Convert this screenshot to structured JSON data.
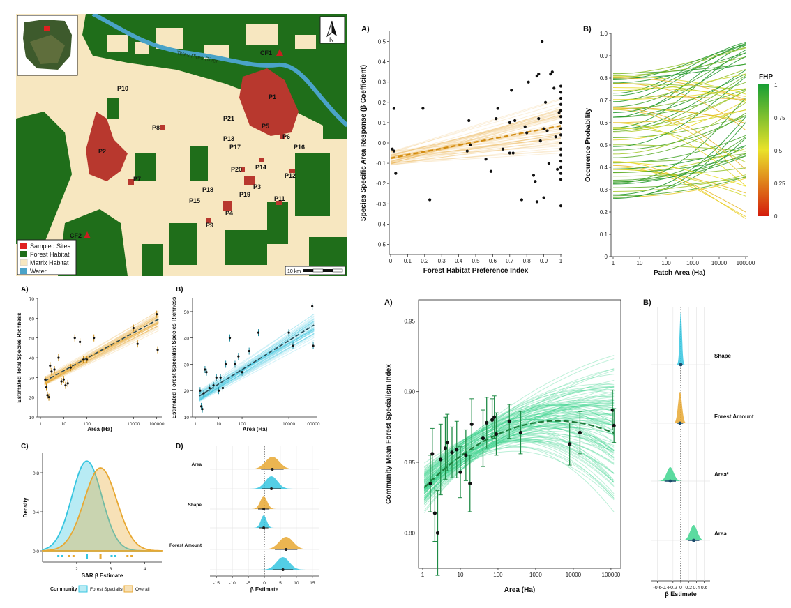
{
  "colors": {
    "orange": "#e8a832",
    "cyan": "#35c5e0",
    "green": "#3fd58f",
    "forest": "#1f6e1a",
    "matrix": "#f7e7c0",
    "site": "#b8382e",
    "water": "#4aa3c8",
    "darkgreen": "#1e7a3a"
  },
  "map": {
    "legend": [
      "Sampled Sites",
      "Forest Habitat",
      "Matrix Habitat",
      "Water"
    ],
    "scale_label": "10 km",
    "north": "N",
    "river_label": "Teles Pires River",
    "site_labels": [
      "P1",
      "P2",
      "P3",
      "P4",
      "P5",
      "P6",
      "P7",
      "P8",
      "P9",
      "P10",
      "P11",
      "P12",
      "P13",
      "P14",
      "P15",
      "P16",
      "P17",
      "P18",
      "P19",
      "P20",
      "P21",
      "CF1",
      "CF2"
    ]
  },
  "chart_data": [
    {
      "id": "top-A",
      "type": "scatter",
      "label": "A)",
      "xlabel": "Forest Habitat Preference Index",
      "ylabel": "Species Specific Area Response (β Coefficient)",
      "xlim": [
        0,
        1
      ],
      "ylim": [
        -0.55,
        0.55
      ],
      "xticks": [
        "0",
        "0.1",
        "0.2",
        "0.3",
        "0.4",
        "0.5",
        "0.6",
        "0.7",
        "0.8",
        "0.9",
        "1"
      ],
      "yticks": [
        "-0.5",
        "-0.4",
        "-0.3",
        "-0.2",
        "-0.1",
        "0.0",
        "0.1",
        "0.2",
        "0.3",
        "0.4",
        "0.5"
      ],
      "fit": {
        "intercept": -0.075,
        "slope": 0.16
      },
      "points": [
        [
          0.01,
          -0.03
        ],
        [
          0.02,
          0.17
        ],
        [
          0.02,
          -0.04
        ],
        [
          0.03,
          -0.15
        ],
        [
          0.19,
          0.17
        ],
        [
          0.23,
          -0.28
        ],
        [
          0.45,
          -0.04
        ],
        [
          0.46,
          0.11
        ],
        [
          0.47,
          -0.01
        ],
        [
          0.56,
          -0.08
        ],
        [
          0.59,
          -0.14
        ],
        [
          0.62,
          0.12
        ],
        [
          0.63,
          0.17
        ],
        [
          0.66,
          -0.03
        ],
        [
          0.7,
          0.1
        ],
        [
          0.7,
          -0.05
        ],
        [
          0.71,
          0.26
        ],
        [
          0.72,
          -0.05
        ],
        [
          0.73,
          0.11
        ],
        [
          0.77,
          -0.28
        ],
        [
          0.79,
          0.08
        ],
        [
          0.8,
          0.05
        ],
        [
          0.81,
          0.3
        ],
        [
          0.84,
          -0.16
        ],
        [
          0.85,
          -0.19
        ],
        [
          0.86,
          0.33
        ],
        [
          0.86,
          -0.29
        ],
        [
          0.87,
          0.34
        ],
        [
          0.87,
          0.12
        ],
        [
          0.88,
          0.01
        ],
        [
          0.89,
          0.5
        ],
        [
          0.9,
          0.07
        ],
        [
          0.9,
          -0.27
        ],
        [
          0.91,
          0.2
        ],
        [
          0.92,
          0.06
        ],
        [
          0.93,
          -0.1
        ],
        [
          0.94,
          0.34
        ],
        [
          0.95,
          0.35
        ],
        [
          0.96,
          0.27
        ],
        [
          0.97,
          0.03
        ],
        [
          0.98,
          -0.13
        ],
        [
          0.99,
          0.15
        ],
        [
          1.0,
          0.28
        ],
        [
          1.0,
          0.25
        ],
        [
          1.0,
          0.22
        ],
        [
          1.0,
          0.19
        ],
        [
          1.0,
          0.16
        ],
        [
          1.0,
          0.13
        ],
        [
          1.0,
          0.1
        ],
        [
          1.0,
          0.07
        ],
        [
          1.0,
          0.04
        ],
        [
          1.0,
          0.0
        ],
        [
          1.0,
          -0.03
        ],
        [
          1.0,
          -0.06
        ],
        [
          1.0,
          -0.09
        ],
        [
          1.0,
          -0.12
        ],
        [
          1.0,
          -0.15
        ],
        [
          1.0,
          -0.18
        ],
        [
          1.0,
          -0.31
        ]
      ]
    },
    {
      "id": "top-B",
      "type": "line",
      "label": "B)",
      "xlabel": "Patch Area (Ha)",
      "ylabel": "Occurence Probability",
      "ylim": [
        0,
        1
      ],
      "xticks": [
        "1",
        "10",
        "100",
        "1000",
        "10000",
        "100000"
      ],
      "yticks": [
        "0",
        "0.1",
        "0.2",
        "0.3",
        "0.4",
        "0.5",
        "0.6",
        "0.7",
        "0.8",
        "0.9",
        "1.0"
      ],
      "colorbar": {
        "title": "FHP",
        "ticks": [
          "1",
          "0.75",
          "0.5",
          "0.25",
          "0"
        ]
      },
      "n_series": 70
    },
    {
      "id": "mid-A",
      "type": "scatter",
      "label": "A)",
      "xlabel": "Area (Ha)",
      "ylabel": "Estimated Total Species Richness",
      "ylim": [
        10,
        70
      ],
      "xticks": [
        "1",
        "10",
        "100",
        "10000",
        "100000"
      ],
      "yticks": [
        "10",
        "20",
        "30",
        "40",
        "50",
        "60",
        "70"
      ],
      "fit": {
        "intercept": 27,
        "slope": 6.4
      },
      "points": [
        [
          1.6,
          29
        ],
        [
          1.8,
          25
        ],
        [
          2.0,
          21
        ],
        [
          2.3,
          20
        ],
        [
          2.6,
          36
        ],
        [
          3,
          33
        ],
        [
          4,
          34
        ],
        [
          6,
          40
        ],
        [
          8,
          28
        ],
        [
          10,
          29
        ],
        [
          12,
          26
        ],
        [
          15,
          27
        ],
        [
          20,
          35
        ],
        [
          30,
          50
        ],
        [
          50,
          48
        ],
        [
          70,
          39
        ],
        [
          100,
          39
        ],
        [
          200,
          50
        ],
        [
          10000,
          55
        ],
        [
          15000,
          47
        ],
        [
          100000,
          62
        ],
        [
          110000,
          44
        ]
      ]
    },
    {
      "id": "mid-B",
      "type": "scatter",
      "label": "B)",
      "xlabel": "Area (Ha)",
      "ylabel": "Estimated Forest Specialist Species Richness",
      "ylim": [
        10,
        55
      ],
      "xticks": [
        "1",
        "10",
        "100",
        "10000",
        "100000"
      ],
      "yticks": [
        "10",
        "20",
        "30",
        "40",
        "50"
      ],
      "fit": {
        "intercept": 17,
        "slope": 5.5
      },
      "points": [
        [
          1.6,
          20
        ],
        [
          1.8,
          14
        ],
        [
          2.0,
          13
        ],
        [
          2.3,
          19
        ],
        [
          2.6,
          28
        ],
        [
          3,
          27
        ],
        [
          4,
          21
        ],
        [
          6,
          22
        ],
        [
          8,
          25
        ],
        [
          10,
          20
        ],
        [
          12,
          25
        ],
        [
          15,
          21
        ],
        [
          20,
          30
        ],
        [
          30,
          40
        ],
        [
          50,
          30
        ],
        [
          70,
          33
        ],
        [
          100,
          27
        ],
        [
          200,
          35
        ],
        [
          500,
          42
        ],
        [
          10000,
          42
        ],
        [
          15000,
          37
        ],
        [
          100000,
          52
        ],
        [
          110000,
          37
        ]
      ]
    },
    {
      "id": "mid-C",
      "type": "area",
      "label": "C)",
      "xlabel": "SAR β Estimate",
      "ylabel": "Density",
      "xlim": [
        1,
        4.5
      ],
      "ylim": [
        0,
        1.0
      ],
      "xticks": [
        "2",
        "3",
        "4"
      ],
      "yticks": [
        "0.0",
        "0.4",
        "0.8"
      ],
      "legend_title": "Community",
      "series": [
        {
          "name": "Forest Specialist",
          "mean": 2.3,
          "sd": 0.44,
          "peak": 0.92
        },
        {
          "name": "Overall",
          "mean": 2.7,
          "sd": 0.48,
          "peak": 0.85
        }
      ]
    },
    {
      "id": "mid-D",
      "type": "area",
      "label": "D)",
      "xlabel": "β Estimate",
      "xlim": [
        -17,
        17
      ],
      "xticks": [
        "-15",
        "-10",
        "-5",
        "0",
        "5",
        "10",
        "15"
      ],
      "groups": [
        "Area",
        "Shape",
        "Forest Amount"
      ],
      "estimates": [
        {
          "group": "Area",
          "series": "Overall",
          "mean": 2.5,
          "sd": 2.2
        },
        {
          "group": "Area",
          "series": "Forest Specialist",
          "mean": 2.2,
          "sd": 1.9
        },
        {
          "group": "Shape",
          "series": "Overall",
          "mean": -0.2,
          "sd": 1.1
        },
        {
          "group": "Shape",
          "series": "Forest Specialist",
          "mean": -0.2,
          "sd": 0.9
        },
        {
          "group": "Forest Amount",
          "series": "Overall",
          "mean": 6.8,
          "sd": 2.2
        },
        {
          "group": "Forest Amount",
          "series": "Forest Specialist",
          "mean": 5.8,
          "sd": 2.0
        }
      ]
    },
    {
      "id": "bot-A",
      "type": "scatter",
      "label": "A)",
      "xlabel": "Area (Ha)",
      "ylabel": "Community Mean Forest Specialism Index",
      "ylim": [
        0.775,
        0.965
      ],
      "xticks": [
        "1",
        "10",
        "100",
        "1000",
        "10000",
        "100000"
      ],
      "yticks": [
        "0.80",
        "0.85",
        "0.90",
        "0.95"
      ],
      "points": [
        [
          1.6,
          0.835,
          0.02
        ],
        [
          1.8,
          0.856,
          0.018
        ],
        [
          2.1,
          0.814,
          0.02
        ],
        [
          2.5,
          0.8,
          0.03
        ],
        [
          3,
          0.852,
          0.025
        ],
        [
          4,
          0.86,
          0.022
        ],
        [
          4.5,
          0.864,
          0.02
        ],
        [
          6,
          0.857,
          0.018
        ],
        [
          8,
          0.859,
          0.02
        ],
        [
          10,
          0.843,
          0.018
        ],
        [
          14,
          0.855,
          0.018
        ],
        [
          18,
          0.835,
          0.02
        ],
        [
          20,
          0.877,
          0.018
        ],
        [
          40,
          0.867,
          0.02
        ],
        [
          50,
          0.878,
          0.018
        ],
        [
          70,
          0.88,
          0.015
        ],
        [
          80,
          0.882,
          0.015
        ],
        [
          90,
          0.87,
          0.015
        ],
        [
          200,
          0.879,
          0.012
        ],
        [
          400,
          0.871,
          0.015
        ],
        [
          8000,
          0.863,
          0.015
        ],
        [
          15000,
          0.871,
          0.015
        ],
        [
          110000,
          0.887,
          0.014
        ],
        [
          120000,
          0.876,
          0.012
        ]
      ]
    },
    {
      "id": "bot-B",
      "type": "area",
      "label": "B)",
      "xlabel": "β Estimate",
      "xlim": [
        -0.75,
        0.75
      ],
      "xticks": [
        "-0.6",
        "-0.4",
        "-0.2",
        "0",
        "0.2",
        "0.4",
        "0.6"
      ],
      "groups": [
        "Shape",
        "Forest Amount",
        "Area²",
        "Area"
      ],
      "estimates": [
        {
          "group": "Shape",
          "mean": 0.0,
          "sd": 0.03
        },
        {
          "group": "Forest Amount",
          "mean": -0.02,
          "sd": 0.05
        },
        {
          "group": "Area²",
          "mean": -0.27,
          "sd": 0.09
        },
        {
          "group": "Area",
          "mean": 0.33,
          "sd": 0.09
        }
      ]
    }
  ]
}
